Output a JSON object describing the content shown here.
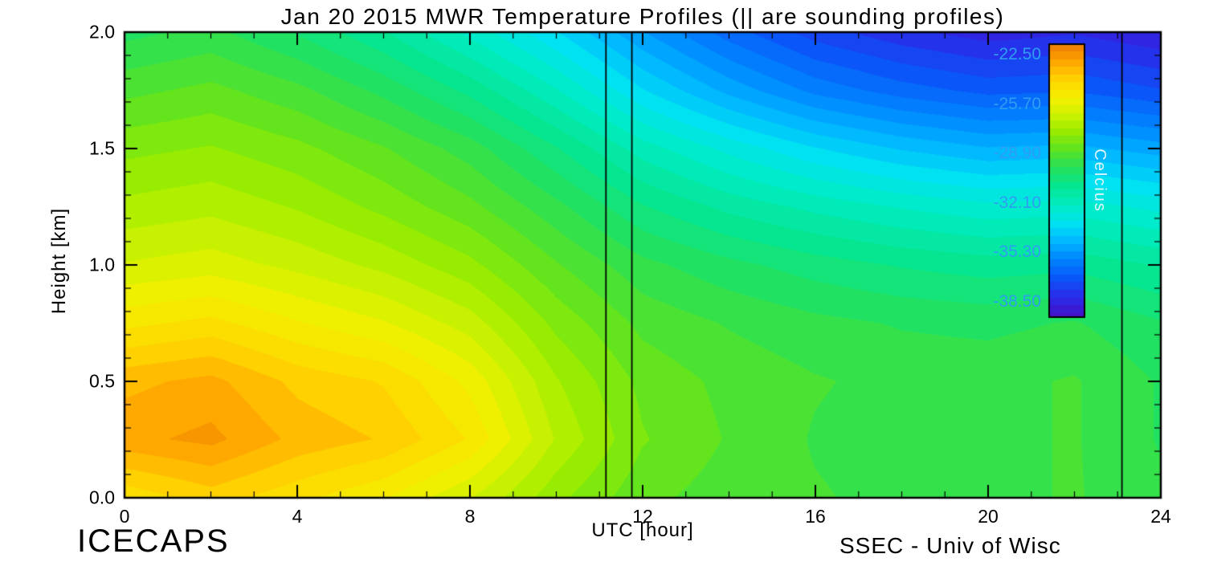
{
  "footer": {
    "left": "ICECAPS",
    "right": "SSEC - Univ of Wisc"
  },
  "chart_data": {
    "type": "heatmap",
    "title": "Jan 20 2015 MWR Temperature Profiles (|| are sounding profiles)",
    "xlabel": "UTC [hour]",
    "ylabel": "Height [km]",
    "xlim": [
      0,
      24
    ],
    "ylim": [
      0,
      2
    ],
    "x_tick_values": [
      0,
      4,
      8,
      12,
      16,
      20,
      24
    ],
    "x_tick_labels": [
      "0",
      "4",
      "8",
      "12",
      "16",
      "20",
      "24"
    ],
    "x_minor_step": 1,
    "y_tick_values": [
      0,
      0.5,
      1.0,
      1.5,
      2.0
    ],
    "y_tick_labels": [
      "0.0",
      "0.5",
      "1.0",
      "1.5",
      "2.0"
    ],
    "y_minor_step": 0.1,
    "sounding_profile_times_utc": [
      11.15,
      11.75,
      23.1
    ],
    "contour_interval_c": 0.5,
    "colorbar": {
      "unit_label": "Celcius",
      "tick_labels": [
        "-22.50",
        "-25.70",
        "-28.90",
        "-32.10",
        "-35.30",
        "-38.50"
      ],
      "tick_values": [
        -22.5,
        -25.7,
        -28.9,
        -32.1,
        -35.3,
        -38.5
      ],
      "vmin": -39.5,
      "vmax": -21.8,
      "tick_label_color": "#2f9df2",
      "unit_label_color": "#e2f6ff",
      "border_color": "#000000"
    },
    "colormap": [
      [
        0.0,
        "#4412c8"
      ],
      [
        0.07,
        "#2b2be8"
      ],
      [
        0.14,
        "#0a55f8"
      ],
      [
        0.21,
        "#0085ff"
      ],
      [
        0.28,
        "#00b8ff"
      ],
      [
        0.34,
        "#00e2f2"
      ],
      [
        0.41,
        "#00ecc2"
      ],
      [
        0.48,
        "#06e690"
      ],
      [
        0.55,
        "#28e058"
      ],
      [
        0.62,
        "#62e41e"
      ],
      [
        0.68,
        "#9aec00"
      ],
      [
        0.74,
        "#ccf200"
      ],
      [
        0.8,
        "#f4f000"
      ],
      [
        0.87,
        "#ffd400"
      ],
      [
        0.93,
        "#ffaa00"
      ],
      [
        1.0,
        "#ef7d00"
      ]
    ],
    "grid": {
      "x_utc": [
        0,
        2,
        4,
        6,
        8,
        10,
        12,
        14,
        16,
        18,
        20,
        22,
        24
      ],
      "height_km": [
        0,
        0.25,
        0.5,
        0.75,
        1.0,
        1.25,
        1.5,
        1.75,
        2.0
      ],
      "temps_c": [
        [
          -24.6,
          -24.0,
          -24.6,
          -25.2,
          -26.2,
          -27.6,
          -28.6,
          -29.0,
          -29.2,
          -29.4,
          -29.4,
          -29.2,
          -29.6
        ],
        [
          -22.9,
          -22.6,
          -23.4,
          -23.8,
          -24.8,
          -26.8,
          -28.2,
          -28.8,
          -29.3,
          -29.5,
          -29.4,
          -29.2,
          -29.8
        ],
        [
          -23.4,
          -23.1,
          -23.9,
          -24.3,
          -25.4,
          -27.2,
          -28.4,
          -28.9,
          -29.2,
          -29.4,
          -29.4,
          -29.2,
          -29.8
        ],
        [
          -24.9,
          -24.6,
          -25.2,
          -25.7,
          -26.5,
          -27.9,
          -28.9,
          -29.3,
          -29.6,
          -29.8,
          -29.9,
          -29.7,
          -30.2
        ],
        [
          -26.2,
          -26.0,
          -26.4,
          -26.9,
          -27.6,
          -28.7,
          -29.6,
          -30.1,
          -30.5,
          -30.8,
          -31.0,
          -30.9,
          -31.3
        ],
        [
          -27.1,
          -26.9,
          -27.3,
          -27.9,
          -28.6,
          -29.6,
          -30.7,
          -31.4,
          -31.9,
          -32.3,
          -32.6,
          -32.5,
          -32.9
        ],
        [
          -27.9,
          -27.7,
          -28.1,
          -28.7,
          -29.5,
          -30.7,
          -32.0,
          -32.9,
          -33.7,
          -34.3,
          -34.7,
          -34.6,
          -35.0
        ],
        [
          -28.9,
          -28.6,
          -29.1,
          -29.9,
          -30.9,
          -32.2,
          -33.7,
          -34.9,
          -35.9,
          -36.5,
          -36.9,
          -36.8,
          -37.2
        ],
        [
          -29.9,
          -29.6,
          -30.3,
          -31.2,
          -32.4,
          -33.7,
          -35.2,
          -36.5,
          -37.5,
          -38.1,
          -38.5,
          -38.3,
          -38.7
        ]
      ]
    }
  }
}
